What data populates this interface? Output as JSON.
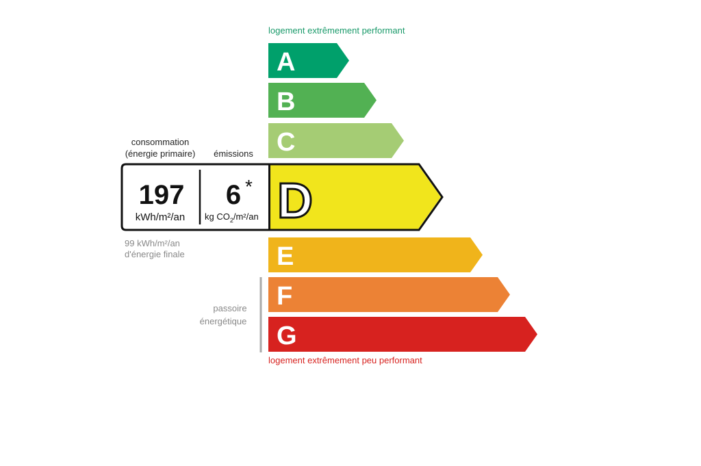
{
  "top_label": "logement extrêmement performant",
  "bottom_label": "logement extrêmement peu performant",
  "colors": {
    "top_label": "#1a9a6a",
    "bottom_label": "#d7221f",
    "A": "#00a06b",
    "B": "#52b153",
    "C": "#a5cc74",
    "D": "#f1e51c",
    "E": "#f0b41b",
    "F": "#ec8235",
    "G": "#d7221f"
  },
  "classes": [
    "A",
    "B",
    "C",
    "D",
    "E",
    "F",
    "G"
  ],
  "current_class": "D",
  "consumption": {
    "label_line1": "consommation",
    "label_line2": "(énergie primaire)",
    "value": "197",
    "unit": "kWh/m²/an"
  },
  "emissions": {
    "label": "émissions",
    "value": "6",
    "asterisk": "*",
    "unit_prefix": "kg CO",
    "unit_sub": "2",
    "unit_suffix": "/m²/an"
  },
  "final_energy": {
    "line1": "99 kWh/m²/an",
    "line2": "d'énergie finale"
  },
  "passoire": {
    "line1": "passoire",
    "line2": "énergétique"
  }
}
